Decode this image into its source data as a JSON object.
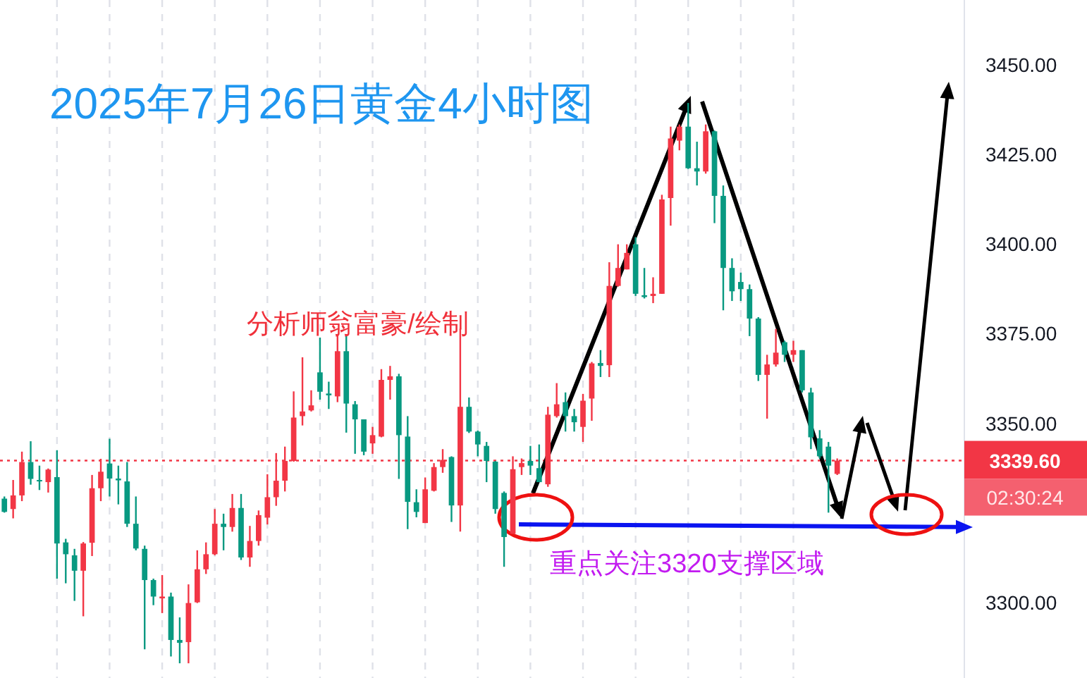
{
  "chart_data": {
    "type": "candlestick",
    "title": "2025年7月26日黄金4小时图",
    "annotations": [
      "分析师翁富豪/绘制",
      "重点关注3320支撑区域",
      "02:30:24"
    ],
    "categories": [
      null,
      null,
      null,
      null,
      null,
      null,
      null,
      null,
      null,
      null,
      null,
      null,
      null,
      null,
      null,
      null,
      null,
      null,
      null,
      null,
      null,
      null,
      null,
      null,
      null,
      null,
      null,
      null,
      null,
      null,
      null,
      null,
      null,
      null,
      null,
      null,
      null,
      null,
      null,
      null,
      null,
      null,
      null,
      null,
      null,
      null,
      null,
      null,
      null,
      null,
      null,
      null,
      null,
      null,
      null,
      null,
      null,
      null,
      null,
      null,
      null,
      null,
      null,
      null,
      null,
      null,
      null,
      null,
      null,
      null,
      null,
      null,
      null,
      null,
      null,
      null,
      null,
      null,
      null,
      null,
      null,
      null,
      null,
      null,
      null,
      null,
      null,
      null,
      null,
      null,
      null,
      null,
      null,
      null,
      null,
      null,
      null,
      null,
      null,
      null,
      null,
      null,
      null,
      null,
      null,
      null,
      null,
      null,
      null,
      null
    ],
    "ohlc": [
      [
        3329.0,
        3329.6,
        3325.1,
        3325.3
      ],
      [
        3326.1,
        3334.2,
        3323.5,
        3329.9
      ],
      [
        3329.9,
        3342.1,
        3328.3,
        3339.2
      ],
      [
        3339.2,
        3345.0,
        3332.9,
        3334.5
      ],
      [
        3334.2,
        3338.2,
        3331.4,
        3333.8
      ],
      [
        3333.6,
        3337.4,
        3330.7,
        3337.1
      ],
      [
        3335.0,
        3342.5,
        3306.7,
        3316.5
      ],
      [
        3316.8,
        3317.8,
        3305.4,
        3313.5
      ],
      [
        3313.2,
        3315.0,
        3300.5,
        3308.9
      ],
      [
        3308.9,
        3316.9,
        3296.2,
        3316.5
      ],
      [
        3316.7,
        3335.6,
        3313.0,
        3331.9
      ],
      [
        3331.9,
        3340.1,
        3328.3,
        3336.5
      ],
      [
        3338.8,
        3345.7,
        3329.6,
        3334.6
      ],
      [
        3334.6,
        3338.2,
        3327.4,
        3334.1
      ],
      [
        3333.8,
        3339.2,
        3321.1,
        3322.0
      ],
      [
        3322.0,
        3329.6,
        3314.6,
        3315.1
      ],
      [
        3315.0,
        3315.9,
        3287.0,
        3306.3
      ],
      [
        3306.3,
        3306.7,
        3299.3,
        3301.7
      ],
      [
        3301.2,
        3307.7,
        3297.1,
        3301.7
      ],
      [
        3301.7,
        3302.8,
        3285.0,
        3289.6
      ],
      [
        3289.6,
        3295.9,
        3283.1,
        3288.8
      ],
      [
        3289.0,
        3305.1,
        3283.1,
        3299.9
      ],
      [
        3300.1,
        3314.6,
        3299.9,
        3309.3
      ],
      [
        3309.3,
        3316.8,
        3308.0,
        3313.5
      ],
      [
        3313.5,
        3326.1,
        3313.2,
        3322.0
      ],
      [
        3322.0,
        3324.8,
        3314.6,
        3321.1
      ],
      [
        3321.1,
        3330.3,
        3319.8,
        3326.4
      ],
      [
        3326.4,
        3330.3,
        3311.9,
        3312.6
      ],
      [
        3312.6,
        3321.4,
        3310.0,
        3317.2
      ],
      [
        3317.2,
        3325.7,
        3315.9,
        3324.4
      ],
      [
        3323.7,
        3335.8,
        3321.8,
        3329.4
      ],
      [
        3329.4,
        3341.7,
        3327.0,
        3334.0
      ],
      [
        3334.0,
        3343.5,
        3331.0,
        3339.5
      ],
      [
        3339.5,
        3358.9,
        3339.3,
        3351.6
      ],
      [
        3352.0,
        3368.4,
        3349.4,
        3353.3
      ],
      [
        3353.6,
        3359.2,
        3353.3,
        3355.0
      ],
      [
        3364.2,
        3373.9,
        3356.6,
        3358.8
      ],
      [
        3358.3,
        3361.6,
        3354.0,
        3357.8
      ],
      [
        3357.5,
        3374.9,
        3355.9,
        3370.1
      ],
      [
        3370.1,
        3374.3,
        3347.4,
        3355.5
      ],
      [
        3355.3,
        3356.2,
        3341.5,
        3351.1
      ],
      [
        3351.1,
        3351.1,
        3341.1,
        3342.1
      ],
      [
        3344.4,
        3349.0,
        3341.5,
        3346.7
      ],
      [
        3346.3,
        3365.1,
        3346.1,
        3362.1
      ],
      [
        3362.1,
        3366.0,
        3356.6,
        3363.1
      ],
      [
        3363.1,
        3363.8,
        3334.5,
        3346.7
      ],
      [
        3346.3,
        3352.0,
        3320.5,
        3328.1
      ],
      [
        3328.0,
        3331.6,
        3323.8,
        3325.3
      ],
      [
        3322.2,
        3334.9,
        3322.2,
        3331.6
      ],
      [
        3331.2,
        3338.9,
        3331.0,
        3337.8
      ],
      [
        3337.8,
        3342.8,
        3336.2,
        3339.8
      ],
      [
        3340.6,
        3340.8,
        3322.5,
        3327.1
      ],
      [
        3327.1,
        3376.3,
        3319.8,
        3354.6
      ],
      [
        3354.6,
        3357.2,
        3347.3,
        3347.7
      ],
      [
        3347.7,
        3348.0,
        3340.8,
        3344.1
      ],
      [
        3343.7,
        3344.8,
        3333.6,
        3339.5
      ],
      [
        3339.3,
        3339.5,
        3324.8,
        3326.1
      ],
      [
        3330.6,
        3331.0,
        3310.0,
        3318.3
      ],
      [
        3319.2,
        3340.8,
        3319.2,
        3337.2
      ],
      [
        3337.8,
        3340.2,
        3335.6,
        3338.9
      ],
      [
        3339.5,
        3343.7,
        3335.6,
        3338.2
      ],
      [
        3337.5,
        3344.1,
        3333.6,
        3333.6
      ],
      [
        3333.0,
        3354.6,
        3332.3,
        3352.4
      ],
      [
        3352.0,
        3361.2,
        3351.6,
        3355.3
      ],
      [
        3355.9,
        3358.6,
        3347.7,
        3352.0
      ],
      [
        3352.0,
        3354.0,
        3347.7,
        3350.3
      ],
      [
        3349.0,
        3358.2,
        3344.8,
        3356.3
      ],
      [
        3356.9,
        3367.1,
        3350.7,
        3366.7
      ],
      [
        3366.8,
        3370.4,
        3362.9,
        3366.0
      ],
      [
        3366.2,
        3394.9,
        3362.9,
        3388.3
      ],
      [
        3388.3,
        3399.9,
        3388.1,
        3393.3
      ],
      [
        3392.9,
        3399.9,
        3392.9,
        3397.5
      ],
      [
        3399.9,
        3401.9,
        3385.5,
        3386.1
      ],
      [
        3385.7,
        3393.3,
        3384.8,
        3385.2
      ],
      [
        3385.5,
        3390.7,
        3383.5,
        3386.1
      ],
      [
        3386.1,
        3413.7,
        3386.1,
        3412.4
      ],
      [
        3412.8,
        3432.7,
        3405.1,
        3429.4
      ],
      [
        3428.8,
        3433.3,
        3426.1,
        3432.7
      ],
      [
        3432.7,
        3439.3,
        3420.9,
        3421.1
      ],
      [
        3421.1,
        3428.5,
        3416.3,
        3420.2
      ],
      [
        3420.2,
        3433.3,
        3419.6,
        3431.4
      ],
      [
        3431.4,
        3431.6,
        3405.8,
        3413.4
      ],
      [
        3413.4,
        3416.3,
        3381.5,
        3393.3
      ],
      [
        3393.3,
        3396.0,
        3384.1,
        3386.8
      ],
      [
        3389.4,
        3392.0,
        3384.1,
        3387.4
      ],
      [
        3387.4,
        3388.7,
        3374.3,
        3379.2
      ],
      [
        3379.2,
        3379.6,
        3361.8,
        3363.5
      ],
      [
        3363.5,
        3369.1,
        3351.3,
        3366.4
      ],
      [
        3366.4,
        3376.3,
        3365.8,
        3369.7
      ],
      [
        3372.6,
        3373.0,
        3367.1,
        3369.1
      ],
      [
        3369.1,
        3373.0,
        3367.1,
        3370.4
      ],
      [
        3370.4,
        3370.4,
        3358.6,
        3359.2
      ],
      [
        3358.6,
        3359.9,
        3342.8,
        3346.1
      ],
      [
        3345.8,
        3348.1,
        3340.2,
        3340.8
      ],
      [
        3343.5,
        3344.8,
        3325.1,
        3338.2
      ],
      [
        3335.9,
        3340.2,
        3335.6,
        3339.6
      ],
      null,
      null,
      null,
      null,
      null,
      null,
      null,
      null,
      null,
      null,
      null,
      null,
      null,
      null
    ],
    "colors": [
      "#089981",
      "#f23645",
      "#f23645",
      "#089981",
      "#089981",
      "#f23645",
      "#089981",
      "#089981",
      "#089981",
      "#f23645",
      "#f23645",
      "#f23645",
      "#089981",
      "#089981",
      "#089981",
      "#089981",
      "#089981",
      "#089981",
      "#f23645",
      "#089981",
      "#089981",
      "#f23645",
      "#f23645",
      "#f23645",
      "#f23645",
      "#089981",
      "#f23645",
      "#089981",
      "#f23645",
      "#f23645",
      "#f23645",
      "#f23645",
      "#f23645",
      "#f23645",
      "#f23645",
      "#f23645",
      "#089981",
      "#089981",
      "#f23645",
      "#089981",
      "#089981",
      "#089981",
      "#f23645",
      "#f23645",
      "#f23645",
      "#089981",
      "#089981",
      "#089981",
      "#f23645",
      "#f23645",
      "#f23645",
      "#089981",
      "#f23645",
      "#089981",
      "#089981",
      "#089981",
      "#089981",
      "#089981",
      "#f23645",
      "#f23645",
      "#089981",
      "#089981",
      "#f23645",
      "#f23645",
      "#089981",
      "#089981",
      "#f23645",
      "#f23645",
      "#089981",
      "#f23645",
      "#f23645",
      "#f23645",
      "#089981",
      "#089981",
      "#f23645",
      "#f23645",
      "#f23645",
      "#f23645",
      "#089981",
      "#089981",
      "#f23645",
      "#089981",
      "#089981",
      "#089981",
      "#089981",
      "#089981",
      "#089981",
      "#f23645",
      "#f23645",
      "#089981",
      "#f23645",
      "#089981",
      "#089981",
      "#089981",
      "#089981",
      "#f23645",
      null,
      null,
      null,
      null,
      null,
      null,
      null,
      null,
      null,
      null,
      null,
      null,
      null,
      null
    ],
    "ylim": [
      3279,
      3468
    ],
    "yticks": [
      {
        "value": 3300,
        "label": "3300.00"
      },
      {
        "value": 3350,
        "label": "3350.00"
      },
      {
        "value": 3375,
        "label": "3375.00"
      },
      {
        "value": 3400,
        "label": "3400.00"
      },
      {
        "value": 3425,
        "label": "3425.00"
      },
      {
        "value": 3450,
        "label": "3450.00"
      }
    ],
    "ref_lines": [
      {
        "axis": "y",
        "value": 3339.6,
        "label": "3339.60",
        "color": "#f23645",
        "line_style": "dotted"
      }
    ],
    "grid": "x",
    "tick_labels": "y"
  }
}
